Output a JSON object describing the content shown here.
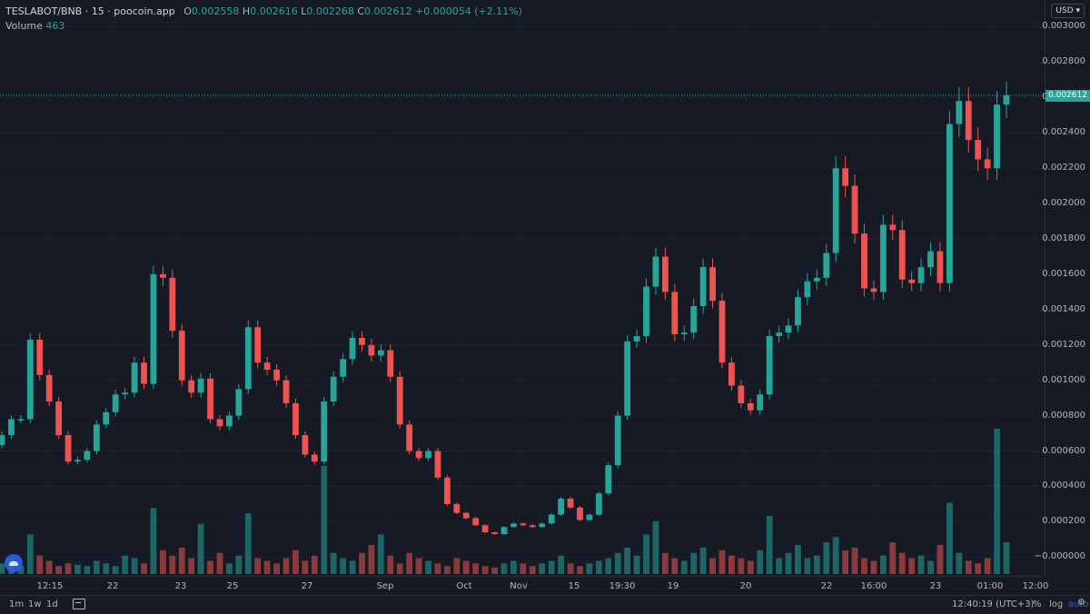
{
  "legend": {
    "symbol": "TESLABOT/BNB · 15 · poocoin.app",
    "open_label": "O",
    "open": "0.002558",
    "high_label": "H",
    "high": "0.002616",
    "low_label": "L",
    "low": "0.002268",
    "close_label": "C",
    "close": "0.002612",
    "change": "+0.000054 (+2.11%)",
    "volume_label": "Volume",
    "volume": "463"
  },
  "currency": "USD ▾",
  "last_price": "0.002612",
  "price_axis": {
    "ticks": [
      "0.003000",
      "0.002800",
      "0.002600",
      "0.002400",
      "0.002200",
      "0.002000",
      "0.001800",
      "0.001600",
      "0.001400",
      "0.001200",
      "0.001000",
      "0.000800",
      "0.000600",
      "0.000400",
      "0.000200",
      "−0.000000"
    ]
  },
  "time_axis": {
    "labels": [
      "12:15",
      "22",
      "23",
      "25",
      "27",
      "Sep",
      "Oct",
      "Nov",
      "15",
      "19:30",
      "19",
      "20",
      "22",
      "16:00",
      "23",
      "01:00",
      "12:00"
    ]
  },
  "bottom_bar": {
    "intervals": [
      "1m",
      "1w",
      "1d"
    ],
    "clock": "12:40:19 (UTC+3)",
    "percent": "%",
    "log": "log",
    "auto": "auto"
  },
  "colors": {
    "up": "#26a69a",
    "down": "#ef5350",
    "background": "#161a25"
  },
  "chart_data": {
    "type": "candlestick",
    "y_range": [
      -6e-05,
      0.0031
    ],
    "close_series": [
      0.00069,
      0.00078,
      0.00078,
      0.00123,
      0.00103,
      0.00088,
      0.00069,
      0.00054,
      0.00055,
      0.0006,
      0.00075,
      0.00082,
      0.00092,
      0.00093,
      0.0011,
      0.00098,
      0.0016,
      0.00158,
      0.00128,
      0.001,
      0.00093,
      0.00101,
      0.00078,
      0.00074,
      0.0008,
      0.00095,
      0.0013,
      0.0011,
      0.00106,
      0.001,
      0.00087,
      0.00069,
      0.00058,
      0.00054,
      0.00088,
      0.00102,
      0.00112,
      0.00124,
      0.0012,
      0.00114,
      0.00117,
      0.00102,
      0.00075,
      0.0006,
      0.00056,
      0.0006,
      0.00045,
      0.0003,
      0.00025,
      0.00022,
      0.00018,
      0.00014,
      0.00013,
      0.00017,
      0.00019,
      0.00018,
      0.00017,
      0.00019,
      0.00024,
      0.00033,
      0.00028,
      0.00021,
      0.00024,
      0.00036,
      0.00052,
      0.0008,
      0.00122,
      0.00125,
      0.00153,
      0.0017,
      0.0015,
      0.00126,
      0.00127,
      0.00142,
      0.00164,
      0.00145,
      0.0011,
      0.00097,
      0.00087,
      0.00083,
      0.00092,
      0.00125,
      0.00127,
      0.00131,
      0.00147,
      0.00156,
      0.00158,
      0.00172,
      0.0022,
      0.0021,
      0.00183,
      0.00152,
      0.0015,
      0.00188,
      0.00185,
      0.00157,
      0.00155,
      0.00164,
      0.00173,
      0.00155,
      0.00245,
      0.00258,
      0.00236,
      0.00225,
      0.0022,
      0.00256,
      0.002612
    ],
    "volume_series": [
      8,
      12,
      6,
      30,
      14,
      10,
      6,
      8,
      7,
      6,
      10,
      8,
      6,
      14,
      12,
      8,
      50,
      18,
      14,
      20,
      12,
      38,
      10,
      16,
      8,
      14,
      46,
      12,
      10,
      8,
      12,
      18,
      10,
      14,
      82,
      16,
      12,
      10,
      16,
      22,
      30,
      14,
      8,
      16,
      12,
      10,
      8,
      6,
      12,
      10,
      8,
      6,
      5,
      8,
      10,
      8,
      6,
      8,
      10,
      14,
      8,
      6,
      8,
      10,
      12,
      16,
      20,
      14,
      30,
      40,
      16,
      12,
      10,
      16,
      20,
      12,
      18,
      14,
      12,
      10,
      18,
      44,
      12,
      16,
      22,
      12,
      14,
      24,
      28,
      18,
      20,
      12,
      10,
      14,
      24,
      16,
      12,
      14,
      10,
      22,
      54,
      16,
      10,
      8,
      12,
      110,
      24
    ]
  }
}
